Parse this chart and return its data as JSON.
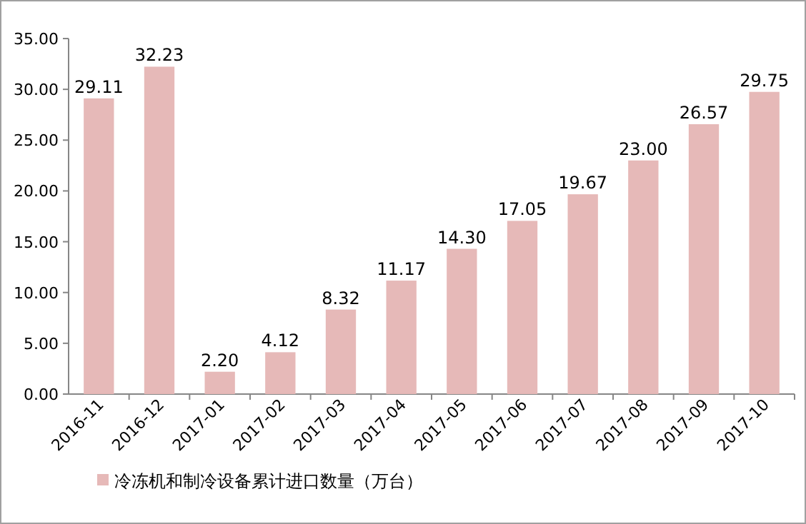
{
  "chart_data": {
    "type": "bar",
    "categories": [
      "2016-11",
      "2016-12",
      "2017-01",
      "2017-02",
      "2017-03",
      "2017-04",
      "2017-05",
      "2017-06",
      "2017-07",
      "2017-08",
      "2017-09",
      "2017-10"
    ],
    "series": [
      {
        "name": "冷冻机和制冷设备累计进口数量（万台）",
        "color": "#e6b9b8",
        "values": [
          29.11,
          32.23,
          2.2,
          4.12,
          8.32,
          11.17,
          14.3,
          17.05,
          19.67,
          23.0,
          26.57,
          29.75
        ],
        "value_labels": [
          "29.11",
          "32.23",
          "2.20",
          "4.12",
          "8.32",
          "11.17",
          "14.30",
          "17.05",
          "19.67",
          "23.00",
          "26.57",
          "29.75"
        ]
      }
    ],
    "ylim": [
      0,
      35
    ],
    "yticks": [
      {
        "value": 0,
        "label": "0.00"
      },
      {
        "value": 5,
        "label": "5.00"
      },
      {
        "value": 10,
        "label": "10.00"
      },
      {
        "value": 15,
        "label": "15.00"
      },
      {
        "value": 20,
        "label": "20.00"
      },
      {
        "value": 25,
        "label": "25.00"
      },
      {
        "value": 30,
        "label": "30.00"
      },
      {
        "value": 35,
        "label": "35.00"
      }
    ],
    "grid": false,
    "legend": "bottom"
  }
}
